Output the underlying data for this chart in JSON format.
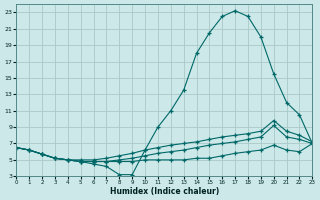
{
  "xlabel": "Humidex (Indice chaleur)",
  "bg_color": "#cce8e8",
  "grid_color": "#aac8c8",
  "line_color": "#006868",
  "xlim": [
    0,
    23
  ],
  "ylim": [
    3,
    24
  ],
  "xticks": [
    0,
    1,
    2,
    3,
    4,
    5,
    6,
    7,
    8,
    9,
    10,
    11,
    12,
    13,
    14,
    15,
    16,
    17,
    18,
    19,
    20,
    21,
    22,
    23
  ],
  "yticks": [
    3,
    5,
    7,
    9,
    11,
    13,
    15,
    17,
    19,
    21,
    23
  ],
  "line1_x": [
    0,
    1,
    2,
    3,
    4,
    5,
    6,
    7,
    8,
    9,
    10,
    11,
    12,
    13,
    14,
    15,
    16,
    17,
    18,
    19,
    20,
    21,
    22,
    23
  ],
  "line1_y": [
    6.5,
    6.2,
    5.7,
    5.2,
    5.0,
    4.8,
    4.5,
    4.2,
    3.2,
    3.2,
    6.2,
    9.0,
    11.0,
    13.5,
    18.0,
    20.5,
    22.5,
    23.2,
    22.5,
    20.0,
    15.5,
    12.0,
    10.5,
    7.0
  ],
  "line2_x": [
    0,
    1,
    2,
    3,
    4,
    5,
    6,
    7,
    8,
    9,
    10,
    11,
    12,
    13,
    14,
    15,
    16,
    17,
    18,
    19,
    20,
    21,
    22,
    23
  ],
  "line2_y": [
    6.5,
    6.2,
    5.7,
    5.2,
    5.0,
    5.0,
    5.0,
    5.2,
    5.5,
    5.8,
    6.2,
    6.5,
    6.8,
    7.0,
    7.2,
    7.5,
    7.8,
    8.0,
    8.2,
    8.5,
    9.8,
    8.5,
    8.0,
    7.2
  ],
  "line3_x": [
    0,
    1,
    2,
    3,
    4,
    5,
    6,
    7,
    8,
    9,
    10,
    11,
    12,
    13,
    14,
    15,
    16,
    17,
    18,
    19,
    20,
    21,
    22,
    23
  ],
  "line3_y": [
    6.5,
    6.2,
    5.7,
    5.2,
    5.0,
    4.8,
    4.8,
    4.8,
    5.0,
    5.2,
    5.5,
    5.8,
    6.0,
    6.2,
    6.5,
    6.8,
    7.0,
    7.2,
    7.5,
    7.8,
    9.2,
    7.8,
    7.5,
    7.0
  ],
  "line4_x": [
    0,
    1,
    2,
    3,
    4,
    5,
    6,
    7,
    8,
    9,
    10,
    11,
    12,
    13,
    14,
    15,
    16,
    17,
    18,
    19,
    20,
    21,
    22,
    23
  ],
  "line4_y": [
    6.5,
    6.2,
    5.7,
    5.2,
    5.0,
    4.8,
    4.8,
    4.8,
    4.8,
    4.8,
    5.0,
    5.0,
    5.0,
    5.0,
    5.2,
    5.2,
    5.5,
    5.8,
    6.0,
    6.2,
    6.8,
    6.2,
    6.0,
    7.0
  ]
}
